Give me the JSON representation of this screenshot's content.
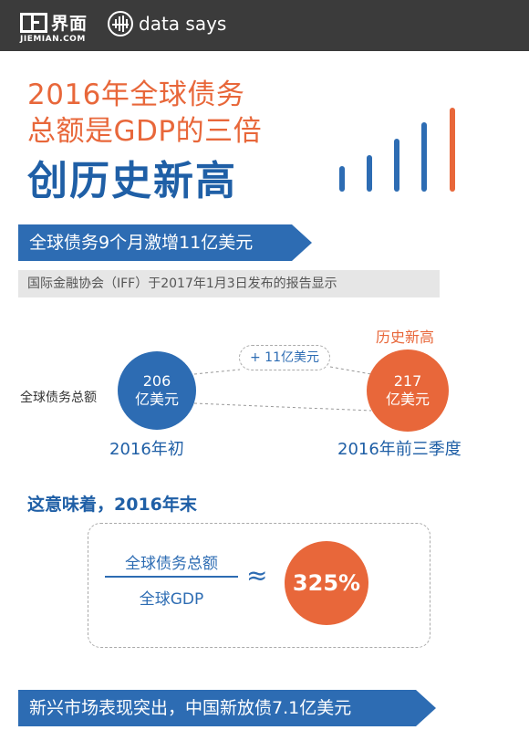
{
  "header": {
    "brand_cn": "界面",
    "brand_en": "JIEMIAN.COM",
    "column": "data says"
  },
  "title": {
    "line1": "2016年全球债务",
    "line2": "总额是GDP的三倍",
    "line3": "创历史新高"
  },
  "section1": {
    "banner": "全球债务9个月激增11亿美元",
    "source": "国际金融协会（IFF）于2017年1月3日发布的报告显示"
  },
  "comparison": {
    "label": "全球债务总额",
    "start": {
      "value": "206",
      "unit": "亿美元",
      "period": "2016年初"
    },
    "end": {
      "value": "217",
      "unit": "亿美元",
      "period": "2016年前三季度"
    },
    "increase": "+ 11亿美元",
    "record": "历史新高"
  },
  "meaning": {
    "title": "这意味着，2016年末",
    "numerator": "全球债务总额",
    "denominator": "全球GDP",
    "approx": "≈",
    "ratio": "325%"
  },
  "section2": {
    "banner": "新兴市场表现突出，中国新放债7.1亿美元"
  },
  "colors": {
    "blue": "#2d6cb3",
    "orange": "#e8673a",
    "header_bg": "#3b3b3b"
  }
}
